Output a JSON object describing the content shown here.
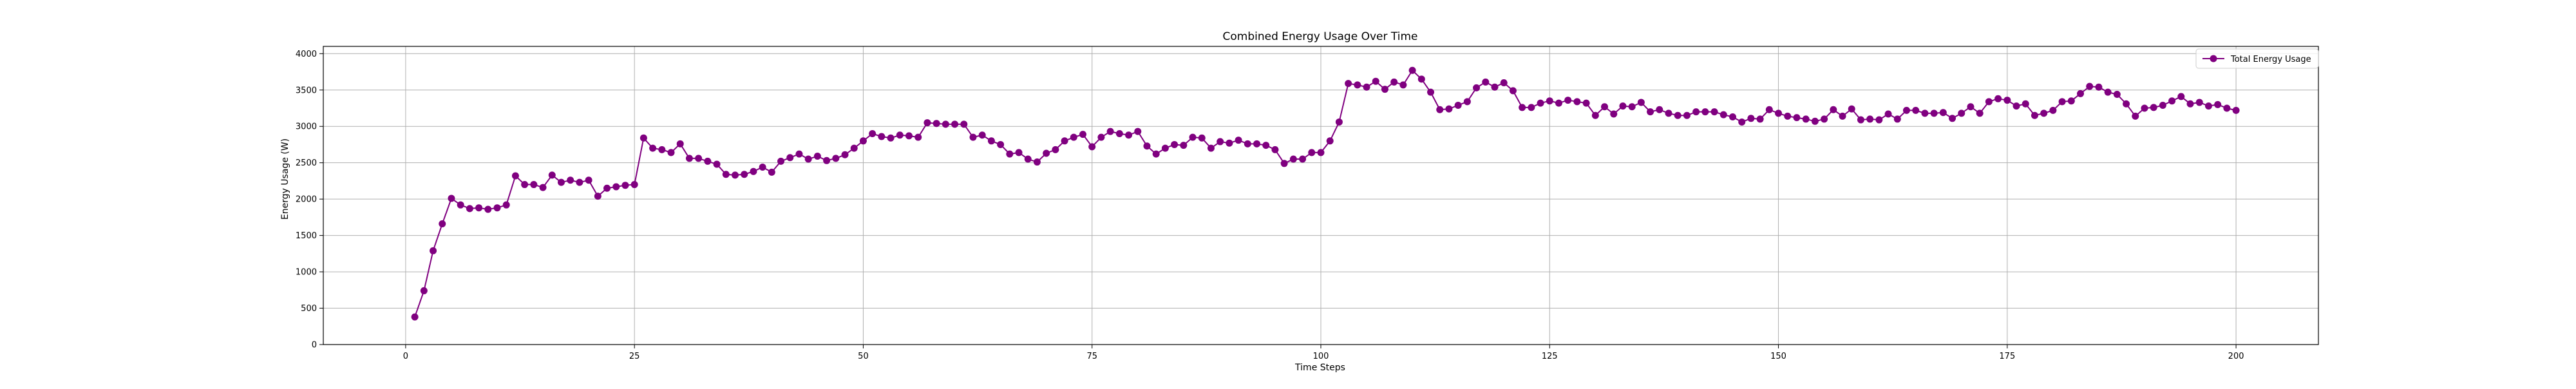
{
  "chart_data": {
    "type": "line",
    "title": "Combined Energy Usage Over Time",
    "xlabel": "Time Steps",
    "ylabel": "Energy Usage (W)",
    "xlim": [
      -9,
      209
    ],
    "ylim": [
      0,
      4100
    ],
    "xticks": [
      0,
      25,
      50,
      75,
      100,
      125,
      150,
      175,
      200
    ],
    "yticks": [
      0,
      500,
      1000,
      1500,
      2000,
      2500,
      3000,
      3500,
      4000
    ],
    "grid": true,
    "legend_position": "top-right",
    "colors": {
      "series": "#800080",
      "grid": "#b0b0b0",
      "axis": "#000000"
    },
    "series": [
      {
        "name": "Total Energy Usage",
        "marker": "circle",
        "x": [
          1,
          2,
          3,
          4,
          5,
          6,
          7,
          8,
          9,
          10,
          11,
          12,
          13,
          14,
          15,
          16,
          17,
          18,
          19,
          20,
          21,
          22,
          23,
          24,
          25,
          26,
          27,
          28,
          29,
          30,
          31,
          32,
          33,
          34,
          35,
          36,
          37,
          38,
          39,
          40,
          41,
          42,
          43,
          44,
          45,
          46,
          47,
          48,
          49,
          50,
          51,
          52,
          53,
          54,
          55,
          56,
          57,
          58,
          59,
          60,
          61,
          62,
          63,
          64,
          65,
          66,
          67,
          68,
          69,
          70,
          71,
          72,
          73,
          74,
          75,
          76,
          77,
          78,
          79,
          80,
          81,
          82,
          83,
          84,
          85,
          86,
          87,
          88,
          89,
          90,
          91,
          92,
          93,
          94,
          95,
          96,
          97,
          98,
          99,
          100,
          101,
          102,
          103,
          104,
          105,
          106,
          107,
          108,
          109,
          110,
          111,
          112,
          113,
          114,
          115,
          116,
          117,
          118,
          119,
          120,
          121,
          122,
          123,
          124,
          125,
          126,
          127,
          128,
          129,
          130,
          131,
          132,
          133,
          134,
          135,
          136,
          137,
          138,
          139,
          140,
          141,
          142,
          143,
          144,
          145,
          146,
          147,
          148,
          149,
          150,
          151,
          152,
          153,
          154,
          155,
          156,
          157,
          158,
          159,
          160,
          161,
          162,
          163,
          164,
          165,
          166,
          167,
          168,
          169,
          170,
          171,
          172,
          173,
          174,
          175,
          176,
          177,
          178,
          179,
          180,
          181,
          182,
          183,
          184,
          185,
          186,
          187,
          188,
          189,
          190,
          191,
          192,
          193,
          194,
          195,
          196,
          197,
          198,
          199,
          200
        ],
        "values": [
          380,
          740,
          1290,
          1660,
          2010,
          1920,
          1870,
          1880,
          1860,
          1880,
          1920,
          2320,
          2200,
          2200,
          2160,
          2330,
          2230,
          2260,
          2230,
          2260,
          2040,
          2150,
          2170,
          2190,
          2200,
          2840,
          2700,
          2680,
          2640,
          2760,
          2560,
          2560,
          2520,
          2480,
          2340,
          2330,
          2340,
          2380,
          2440,
          2370,
          2520,
          2570,
          2620,
          2550,
          2590,
          2530,
          2560,
          2610,
          2700,
          2800,
          2900,
          2860,
          2840,
          2880,
          2870,
          2850,
          3050,
          3040,
          3030,
          3030,
          3030,
          2850,
          2880,
          2800,
          2750,
          2620,
          2640,
          2550,
          2510,
          2630,
          2680,
          2800,
          2850,
          2890,
          2720,
          2850,
          2930,
          2900,
          2880,
          2930,
          2730,
          2620,
          2700,
          2750,
          2740,
          2850,
          2840,
          2700,
          2790,
          2770,
          2810,
          2760,
          2760,
          2740,
          2680,
          2490,
          2550,
          2550,
          2640,
          2640,
          2800,
          3060,
          3590,
          3570,
          3540,
          3620,
          3510,
          3610,
          3570,
          3770,
          3650,
          3470,
          3230,
          3240,
          3290,
          3340,
          3530,
          3610,
          3540,
          3600,
          3490,
          3260,
          3260,
          3320,
          3350,
          3320,
          3360,
          3340,
          3320,
          3150,
          3270,
          3170,
          3280,
          3270,
          3330,
          3200,
          3230,
          3180,
          3150,
          3150,
          3200,
          3200,
          3200,
          3160,
          3130,
          3060,
          3110,
          3100,
          3230,
          3180,
          3140,
          3120,
          3100,
          3070,
          3100,
          3230,
          3140,
          3240,
          3090,
          3100,
          3090,
          3170,
          3100,
          3220,
          3220,
          3180,
          3180,
          3190,
          3110,
          3180,
          3270,
          3180,
          3340,
          3380,
          3360,
          3280,
          3310,
          3150,
          3180,
          3220,
          3340,
          3350,
          3450,
          3550,
          3540,
          3470,
          3440,
          3310,
          3140,
          3250,
          3260,
          3290,
          3350,
          3410,
          3310,
          3330,
          3280,
          3300,
          3250,
          3220
        ]
      }
    ]
  }
}
